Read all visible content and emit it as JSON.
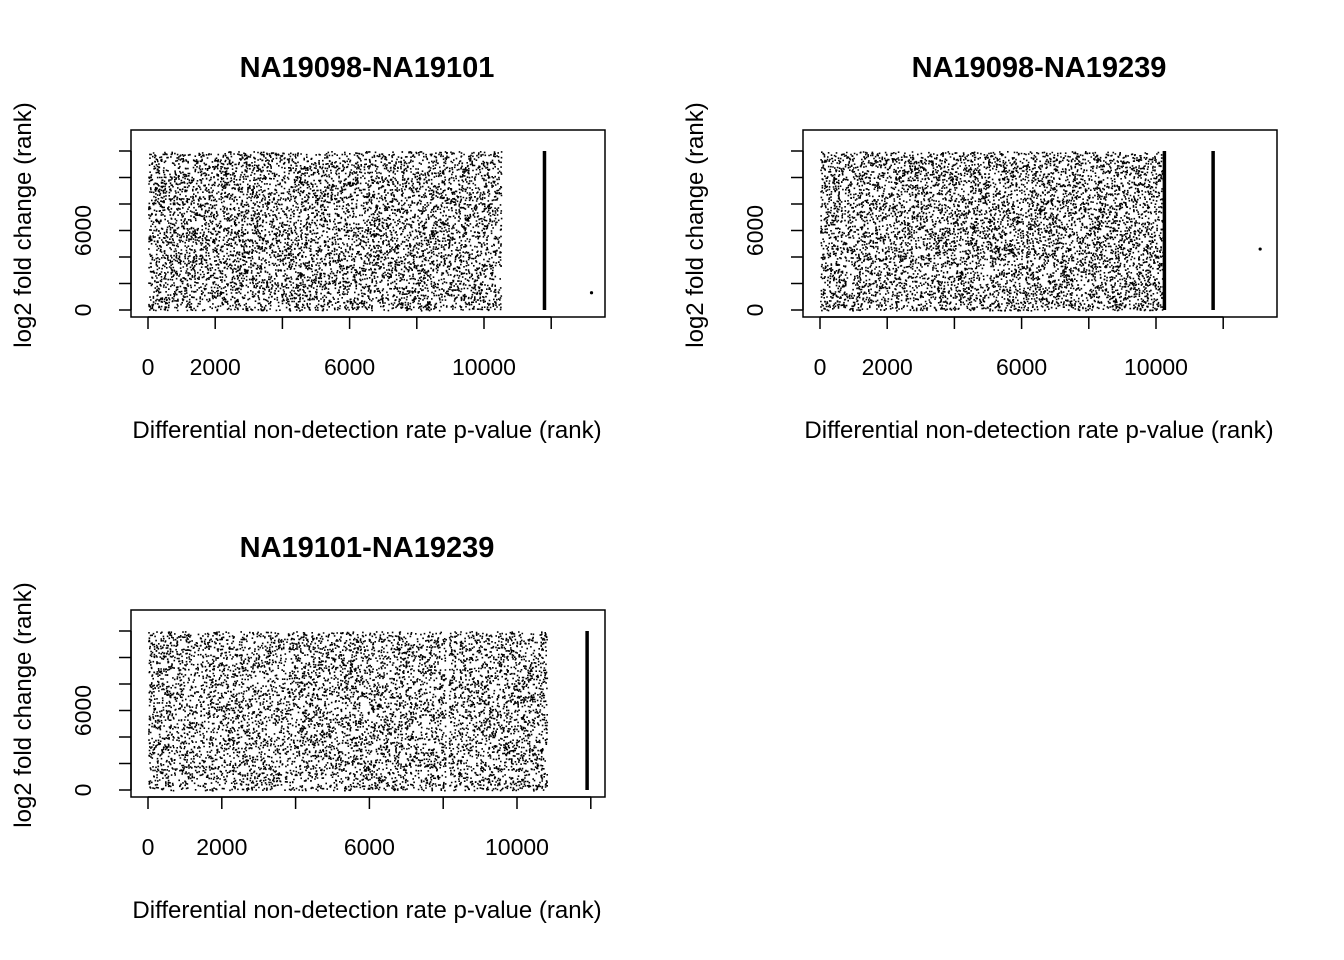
{
  "chart_data": [
    {
      "type": "scatter",
      "title": "NA19098-NA19101",
      "xlabel": "Differential non-detection rate p-value (rank)",
      "ylabel": "log2 fold change (rank)",
      "xlim": [
        -500,
        13600
      ],
      "ylim": [
        0,
        12100
      ],
      "x_ticks": [
        0,
        2000,
        4000,
        6000,
        8000,
        10000,
        12000
      ],
      "x_tick_labels": [
        "0",
        "2000",
        "",
        "6000",
        "",
        "10000",
        ""
      ],
      "y_ticks": [
        0,
        2000,
        4000,
        6000,
        8000,
        10000,
        12000
      ],
      "y_tick_labels": [
        "0",
        "",
        "",
        "6000",
        "",
        "",
        ""
      ],
      "point_color": "#000000",
      "point_density": "dense scatter of ~10500 genes (x 0–10500, y 0–12000)",
      "dense_x_range": [
        0,
        10500
      ],
      "vertical_bands": [
        {
          "x": 11800,
          "y_range": [
            0,
            12000
          ]
        }
      ],
      "outliers": [
        {
          "x": 13200,
          "y": 1300
        }
      ]
    },
    {
      "type": "scatter",
      "title": "NA19098-NA19239",
      "xlabel": "Differential non-detection rate p-value (rank)",
      "ylabel": "log2 fold change (rank)",
      "xlim": [
        -500,
        13600
      ],
      "ylim": [
        0,
        12100
      ],
      "x_ticks": [
        0,
        2000,
        4000,
        6000,
        8000,
        10000,
        12000
      ],
      "x_tick_labels": [
        "0",
        "2000",
        "",
        "6000",
        "",
        "10000",
        ""
      ],
      "y_ticks": [
        0,
        2000,
        4000,
        6000,
        8000,
        10000,
        12000
      ],
      "y_tick_labels": [
        "0",
        "",
        "",
        "6000",
        "",
        "",
        ""
      ],
      "point_color": "#000000",
      "point_density": "dense scatter of ~10200 genes (x 0–10200, y 0–12000)",
      "dense_x_range": [
        0,
        10200
      ],
      "vertical_bands": [
        {
          "x": 10250,
          "y_range": [
            0,
            12000
          ]
        },
        {
          "x": 11700,
          "y_range": [
            0,
            12000
          ]
        }
      ],
      "outliers": [
        {
          "x": 13100,
          "y": 4600
        }
      ]
    },
    {
      "type": "scatter",
      "title": "NA19101-NA19239",
      "xlabel": "Differential non-detection rate p-value (rank)",
      "ylabel": "log2 fold change (rank)",
      "xlim": [
        -500,
        12400
      ],
      "ylim": [
        0,
        12100
      ],
      "x_ticks": [
        0,
        2000,
        4000,
        6000,
        8000,
        10000,
        12000
      ],
      "x_tick_labels": [
        "0",
        "2000",
        "",
        "6000",
        "",
        "10000",
        ""
      ],
      "y_ticks": [
        0,
        2000,
        4000,
        6000,
        8000,
        10000,
        12000
      ],
      "y_tick_labels": [
        "0",
        "",
        "",
        "6000",
        "",
        "",
        ""
      ],
      "point_color": "#000000",
      "point_density": "dense scatter of ~10800 genes (x 0–10800, y 0–12000)",
      "dense_x_range": [
        0,
        10800
      ],
      "vertical_bands": [
        {
          "x": 11900,
          "y_range": [
            0,
            12000
          ]
        }
      ],
      "gap_x": 8100,
      "outliers": []
    }
  ]
}
